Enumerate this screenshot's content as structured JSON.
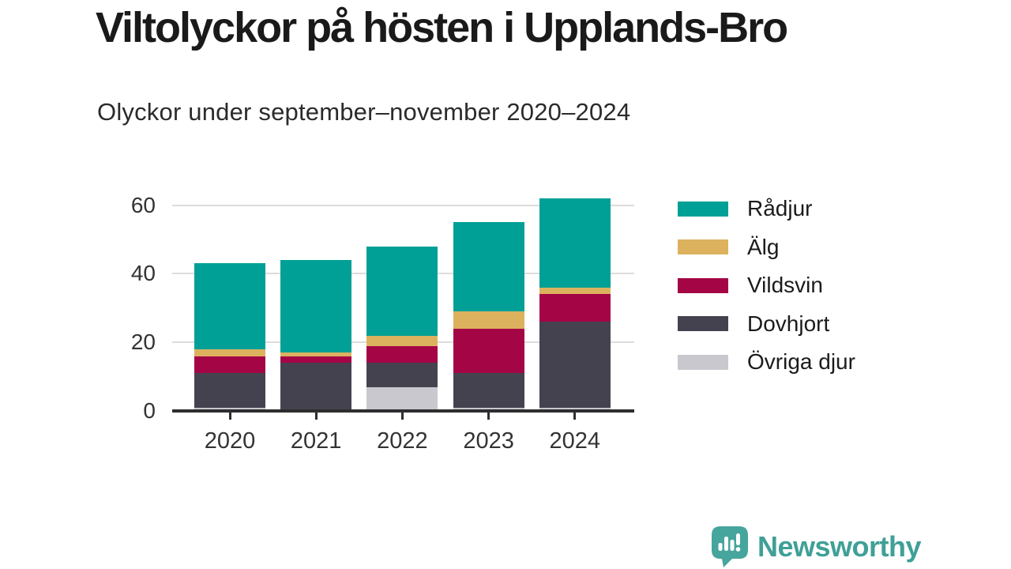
{
  "header": {
    "title": "Viltolyckor på hösten i Upplands-Bro",
    "subtitle": "Olyckor under september–november 2020–2024"
  },
  "chart_data": {
    "type": "bar",
    "stacked": true,
    "title": "Viltolyckor på hösten i Upplands-Bro",
    "subtitle": "Olyckor under september–november 2020–2024",
    "categories": [
      "2020",
      "2021",
      "2022",
      "2023",
      "2024"
    ],
    "series": [
      {
        "name": "Övriga djur",
        "color": "#C9C8CF",
        "values": [
          1,
          0,
          7,
          1,
          1
        ]
      },
      {
        "name": "Dovhjort",
        "color": "#454250",
        "values": [
          10,
          14,
          7,
          10,
          25
        ]
      },
      {
        "name": "Vildsvin",
        "color": "#A40545",
        "values": [
          5,
          2,
          5,
          13,
          8
        ]
      },
      {
        "name": "Älg",
        "color": "#DCB25F",
        "values": [
          2,
          1,
          3,
          5,
          2
        ]
      },
      {
        "name": "Rådjur",
        "color": "#00A096",
        "values": [
          25,
          27,
          26,
          26,
          26
        ]
      }
    ],
    "totals": [
      43,
      44,
      48,
      55,
      62
    ],
    "y_ticks": [
      0,
      20,
      40,
      60
    ],
    "ylim": [
      0,
      64
    ],
    "xlabel": "",
    "ylabel": "",
    "grid": "horizontal",
    "legend": [
      "Rådjur",
      "Älg",
      "Vildsvin",
      "Dovhjort",
      "Övriga djur"
    ],
    "legend_position": "right"
  },
  "branding": {
    "name": "Newsworthy",
    "icon": "newsworthy-chart-bubble-icon",
    "color": "#3FA097"
  },
  "colors": {
    "title_text": "#1A1A1A",
    "subtitle_text": "#2B2B2B",
    "axis": "#2E2E2E",
    "grid": "#DCDCDC",
    "tick_label": "#333333"
  }
}
